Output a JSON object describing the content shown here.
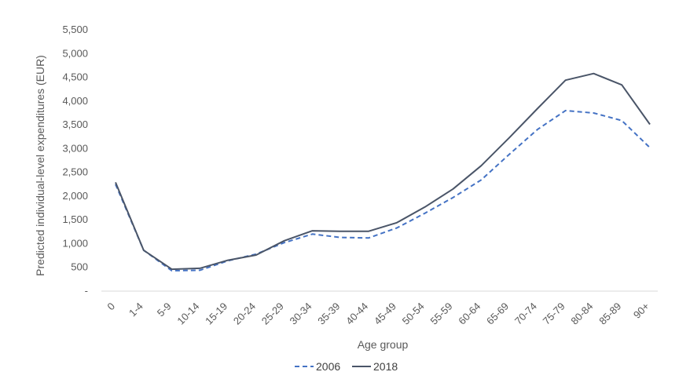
{
  "chart_data": {
    "type": "line",
    "title": "",
    "xlabel": "Age group",
    "ylabel": "Predicted individual-level expenditures (EUR)",
    "categories": [
      "0",
      "1-4",
      "5-9",
      "10-14",
      "15-19",
      "20-24",
      "25-29",
      "30-34",
      "35-39",
      "40-44",
      "45-49",
      "50-54",
      "55-59",
      "60-64",
      "65-69",
      "70-74",
      "75-79",
      "80-84",
      "85-89",
      "90+"
    ],
    "ylim": [
      0,
      5500
    ],
    "yticks": [
      {
        "value": 0,
        "label": "-"
      },
      {
        "value": 500,
        "label": "500"
      },
      {
        "value": 1000,
        "label": "1,000"
      },
      {
        "value": 1500,
        "label": "1,500"
      },
      {
        "value": 2000,
        "label": "2,000"
      },
      {
        "value": 2500,
        "label": "2,500"
      },
      {
        "value": 3000,
        "label": "3,000"
      },
      {
        "value": 3500,
        "label": "3,500"
      },
      {
        "value": 4000,
        "label": "4,000"
      },
      {
        "value": 4500,
        "label": "4,500"
      },
      {
        "value": 5000,
        "label": "5,000"
      },
      {
        "value": 5500,
        "label": "5,500"
      }
    ],
    "grid": false,
    "legend_position": "bottom",
    "series": [
      {
        "name": "2006",
        "color": "#4472c4",
        "dash": "dashed",
        "values": [
          2250,
          860,
          430,
          440,
          640,
          780,
          1020,
          1200,
          1130,
          1120,
          1330,
          1640,
          1970,
          2340,
          2880,
          3400,
          3800,
          3750,
          3590,
          3020
        ]
      },
      {
        "name": "2018",
        "color": "#4a5568",
        "dash": "solid",
        "values": [
          2290,
          860,
          460,
          480,
          650,
          760,
          1060,
          1270,
          1260,
          1260,
          1440,
          1770,
          2150,
          2640,
          3230,
          3840,
          4440,
          4580,
          4340,
          3510
        ]
      }
    ]
  }
}
